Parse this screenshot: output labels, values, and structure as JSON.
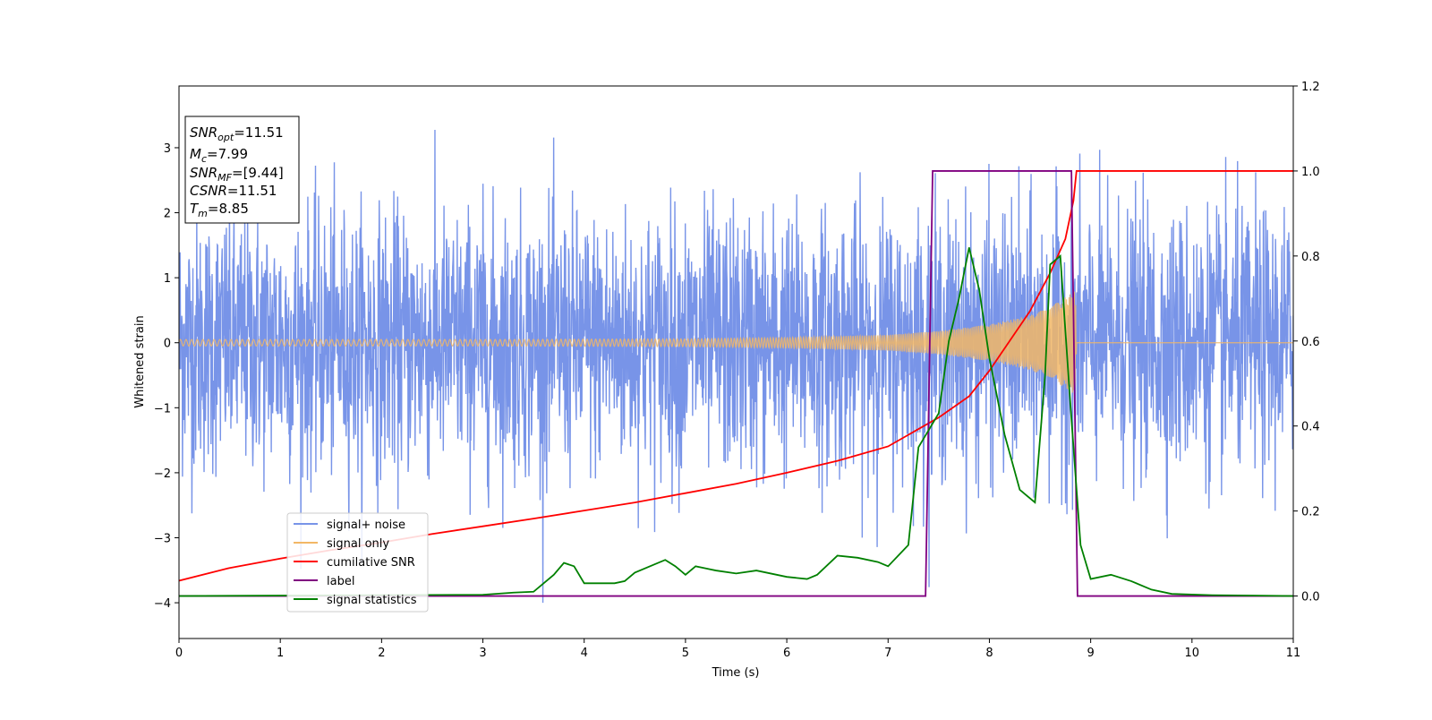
{
  "chart_data": {
    "type": "line",
    "xlabel": "Time (s)",
    "ylabel": "Whitened strain",
    "xlim": [
      0,
      11
    ],
    "ylim": [
      -4.55,
      3.95
    ],
    "ylim_right": [
      -0.1,
      1.2
    ],
    "x_ticks": [
      0,
      1,
      2,
      3,
      4,
      5,
      6,
      7,
      8,
      9,
      10,
      11
    ],
    "y_ticks": [
      -4,
      -3,
      -2,
      -1,
      0,
      1,
      2,
      3
    ],
    "y_ticks_right": [
      "0.0",
      "0.2",
      "0.4",
      "0.6",
      "0.8",
      "1.0",
      "1.2"
    ],
    "grid": false,
    "legend_position": "lower-left",
    "info_box": {
      "snr_opt": {
        "sym": "SNR",
        "sub": "opt",
        "val": "=11.51"
      },
      "mc": {
        "sym": "M",
        "sub": "c",
        "val": "=7.99"
      },
      "snr_mf": {
        "sym": "SNR",
        "sub": "MF",
        "val": "=[9.44]"
      },
      "csnr": {
        "sym": "CSNR",
        "val": "=11.51"
      },
      "tm": {
        "sym": "T",
        "sub": "m",
        "val": "=8.85"
      }
    },
    "series": [
      {
        "name": "signal+ noise",
        "color": "#7894e8",
        "axis": "left",
        "description_values": "noise band, std approx 1, range approx -4 to 3.6 over t in [0, 11]"
      },
      {
        "name": "signal only",
        "color": "#f2b766",
        "axis": "left",
        "envelope": [
          [
            0,
            0.05
          ],
          [
            3,
            0.05
          ],
          [
            5,
            0.06
          ],
          [
            6,
            0.08
          ],
          [
            7,
            0.12
          ],
          [
            7.5,
            0.18
          ],
          [
            8,
            0.28
          ],
          [
            8.4,
            0.42
          ],
          [
            8.6,
            0.55
          ],
          [
            8.75,
            0.7
          ],
          [
            8.85,
            0.8
          ],
          [
            8.86,
            0
          ],
          [
            11,
            0
          ]
        ]
      },
      {
        "name": "cumilative SNR",
        "color": "#ff0000",
        "axis": "right",
        "points": [
          [
            0,
            0.036
          ],
          [
            0.5,
            0.066
          ],
          [
            1,
            0.088
          ],
          [
            1.5,
            0.108
          ],
          [
            2,
            0.126
          ],
          [
            2.5,
            0.146
          ],
          [
            3,
            0.164
          ],
          [
            3.5,
            0.182
          ],
          [
            4,
            0.201
          ],
          [
            4.5,
            0.22
          ],
          [
            5,
            0.242
          ],
          [
            5.5,
            0.264
          ],
          [
            6,
            0.29
          ],
          [
            6.5,
            0.318
          ],
          [
            7,
            0.352
          ],
          [
            7.5,
            0.42
          ],
          [
            7.8,
            0.47
          ],
          [
            8,
            0.53
          ],
          [
            8.2,
            0.6
          ],
          [
            8.4,
            0.67
          ],
          [
            8.6,
            0.76
          ],
          [
            8.75,
            0.84
          ],
          [
            8.83,
            0.93
          ],
          [
            8.86,
            1.0
          ],
          [
            11,
            1.0
          ]
        ]
      },
      {
        "name": "label",
        "color": "#800080",
        "axis": "right",
        "points": [
          [
            0,
            0
          ],
          [
            7.37,
            0
          ],
          [
            7.44,
            1
          ],
          [
            8.81,
            1
          ],
          [
            8.87,
            0
          ],
          [
            11,
            0
          ]
        ]
      },
      {
        "name": "signal statistics",
        "color": "#008000",
        "axis": "right",
        "points": [
          [
            0,
            0
          ],
          [
            3.0,
            0.003
          ],
          [
            3.3,
            0.008
          ],
          [
            3.5,
            0.01
          ],
          [
            3.6,
            0.03
          ],
          [
            3.7,
            0.05
          ],
          [
            3.8,
            0.078
          ],
          [
            3.9,
            0.07
          ],
          [
            4.0,
            0.03
          ],
          [
            4.3,
            0.03
          ],
          [
            4.4,
            0.035
          ],
          [
            4.5,
            0.055
          ],
          [
            4.7,
            0.075
          ],
          [
            4.8,
            0.085
          ],
          [
            4.9,
            0.07
          ],
          [
            5.0,
            0.05
          ],
          [
            5.1,
            0.07
          ],
          [
            5.3,
            0.06
          ],
          [
            5.5,
            0.053
          ],
          [
            5.7,
            0.06
          ],
          [
            6.0,
            0.045
          ],
          [
            6.2,
            0.04
          ],
          [
            6.3,
            0.05
          ],
          [
            6.5,
            0.095
          ],
          [
            6.7,
            0.09
          ],
          [
            6.9,
            0.08
          ],
          [
            7.0,
            0.07
          ],
          [
            7.2,
            0.12
          ],
          [
            7.3,
            0.35
          ],
          [
            7.4,
            0.39
          ],
          [
            7.5,
            0.43
          ],
          [
            7.6,
            0.6
          ],
          [
            7.7,
            0.7
          ],
          [
            7.8,
            0.82
          ],
          [
            7.9,
            0.72
          ],
          [
            8.0,
            0.56
          ],
          [
            8.05,
            0.5
          ],
          [
            8.15,
            0.38
          ],
          [
            8.3,
            0.25
          ],
          [
            8.45,
            0.22
          ],
          [
            8.55,
            0.52
          ],
          [
            8.6,
            0.78
          ],
          [
            8.7,
            0.8
          ],
          [
            8.8,
            0.45
          ],
          [
            8.9,
            0.12
          ],
          [
            9.0,
            0.04
          ],
          [
            9.2,
            0.05
          ],
          [
            9.4,
            0.035
          ],
          [
            9.6,
            0.015
          ],
          [
            9.8,
            0.005
          ],
          [
            10.2,
            0.002
          ],
          [
            11,
            0
          ]
        ]
      }
    ]
  }
}
